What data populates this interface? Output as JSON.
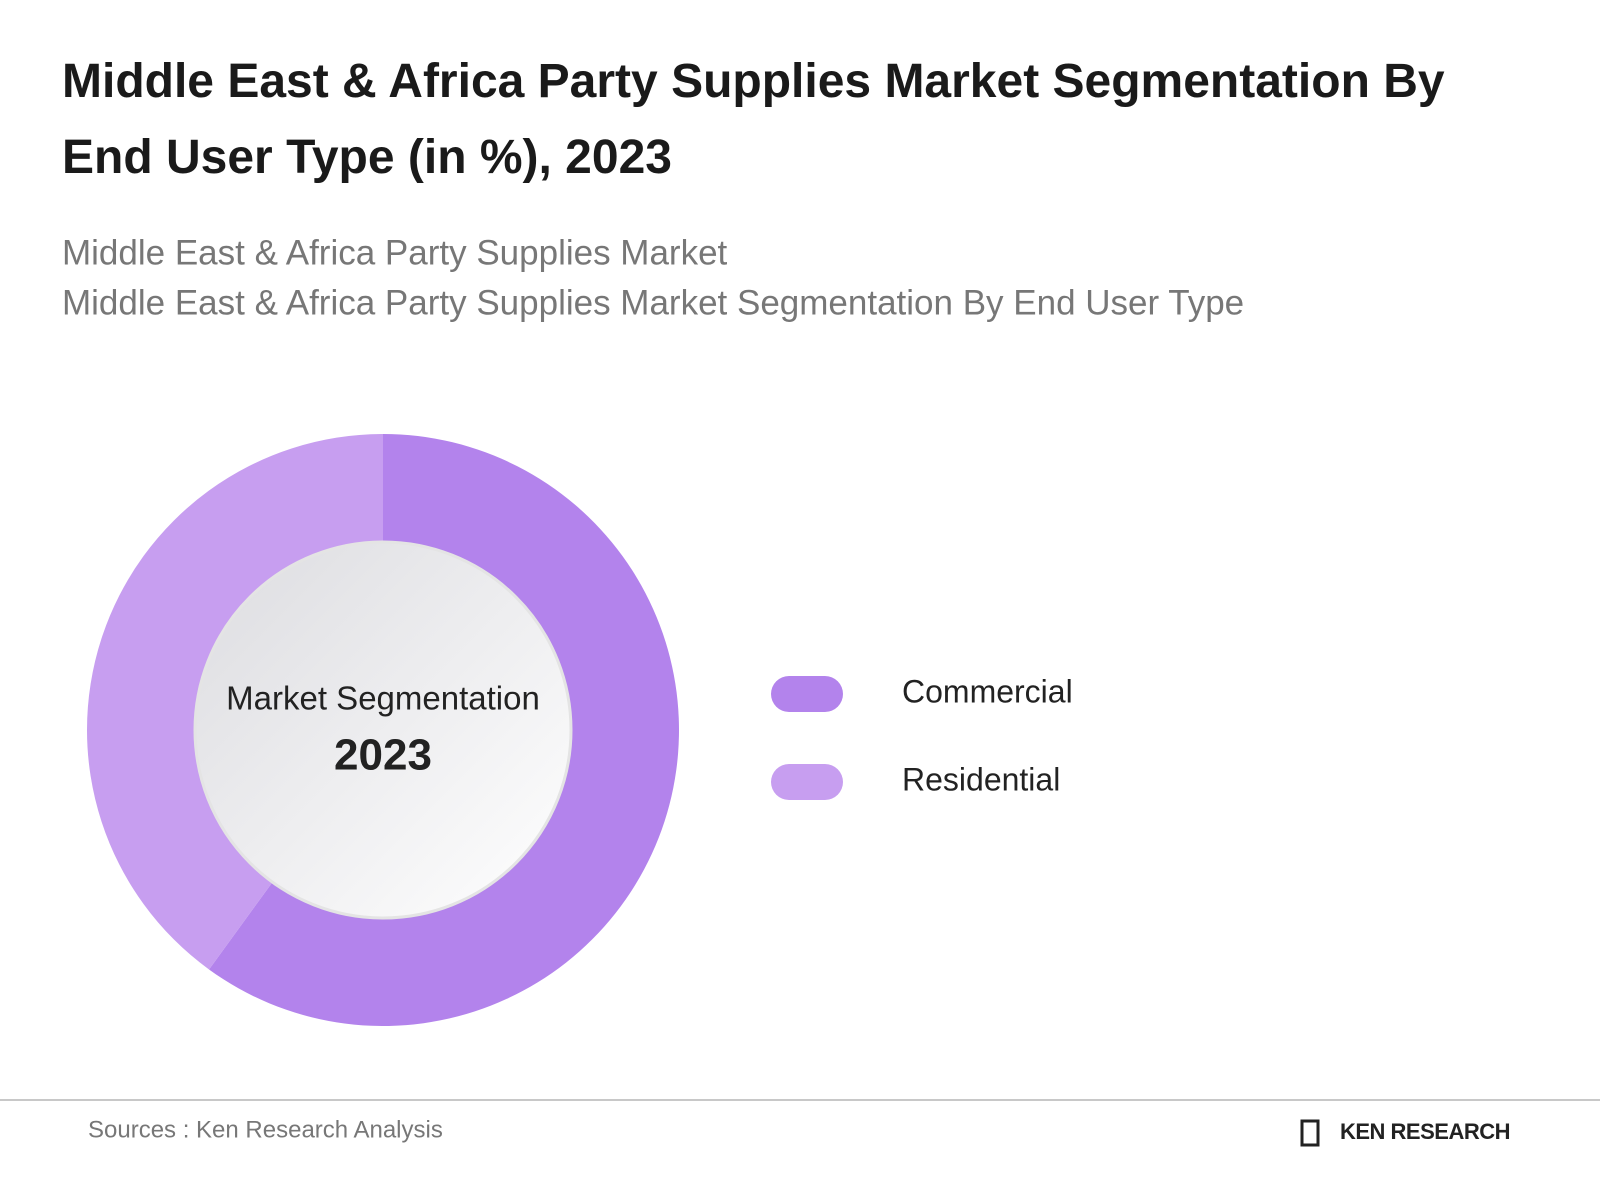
{
  "chart_data": {
    "type": "donut",
    "title": "Middle East & Africa Party Supplies Market Segmentation By End User Type (in %), 2023",
    "subtitle": [
      "Middle East & Africa Party Supplies Market",
      "Middle East & Africa Party Supplies Market Segmentation By End User Type"
    ],
    "center_label": "Market Segmentation",
    "center_year": "2023",
    "categories": [
      "Commercial",
      "Residential"
    ],
    "values": [
      60,
      40
    ],
    "colors": [
      "#b383ec",
      "#c79ef0"
    ],
    "source": "Sources : Ken Research Analysis",
    "brand": "KEN RESEARCH"
  }
}
